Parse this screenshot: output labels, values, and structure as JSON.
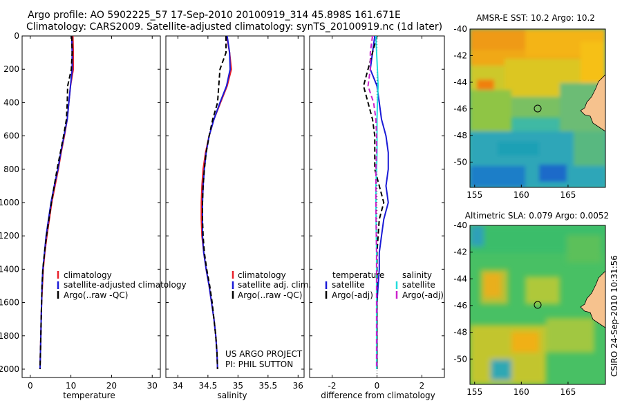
{
  "header": {
    "line1": "Argo profile: AO 5902225_57 17-Sep-2010 20100919_314 45.898S 161.671E",
    "line2": "Climatology: CARS2009. Satellite-adjusted climatology: synTS_20100919.nc (1d later)"
  },
  "credit": {
    "project": "US ARGO PROJECT",
    "pi": "PI: PHIL SUTTON",
    "stamp": "CSIRO 24-Sep-2010 10:31:56"
  },
  "colors": {
    "climatology": "#e8202a",
    "satellite": "#1a1ad6",
    "argo": "#000000",
    "satellite_sal_diff": "#22dddd",
    "argo_sal_diff": "#cc22cc",
    "land": "#f6c28e"
  },
  "chart_data": [
    {
      "type": "line",
      "name": "temperature-profile",
      "xlabel": "temperature",
      "ylabel": "",
      "xlim": [
        -2,
        32
      ],
      "ylim": [
        2050,
        0
      ],
      "xticks": [
        0,
        10,
        20,
        30
      ],
      "yticks": [
        0,
        200,
        400,
        600,
        800,
        1000,
        1200,
        1400,
        1600,
        1800,
        2000
      ],
      "depth": [
        0,
        100,
        200,
        300,
        400,
        500,
        600,
        700,
        800,
        900,
        1000,
        1100,
        1200,
        1300,
        1400,
        1500,
        1600,
        1700,
        1800,
        1900,
        2000
      ],
      "series": [
        {
          "name": "climatology",
          "style": "solid",
          "values": [
            10.5,
            10.6,
            10.6,
            9.9,
            9.5,
            9.1,
            8.4,
            7.6,
            6.9,
            6.1,
            5.3,
            4.7,
            4.1,
            3.6,
            3.2,
            3.0,
            2.8,
            2.7,
            2.6,
            2.5,
            2.4
          ]
        },
        {
          "name": "satellite-adjusted climatology",
          "style": "solid",
          "values": [
            10.2,
            10.3,
            10.3,
            9.9,
            9.5,
            9.1,
            8.3,
            7.5,
            6.8,
            5.9,
            5.1,
            4.5,
            3.9,
            3.5,
            3.1,
            2.9,
            2.8,
            2.7,
            2.6,
            2.5,
            2.4
          ]
        },
        {
          "name": "Argo(..raw -QC)",
          "style": "dashed",
          "values": [
            10.2,
            10.3,
            10.1,
            9.2,
            9.1,
            8.9,
            8.2,
            7.4,
            6.6,
            5.9,
            5.2,
            4.6,
            4.0,
            3.5,
            3.1,
            2.9,
            2.8,
            2.7,
            2.6,
            2.5,
            2.4
          ]
        }
      ],
      "legend": {
        "labels": [
          "climatology",
          "satellite-adjusted climatology",
          "Argo(..raw -QC)"
        ],
        "placement": "lower-right"
      }
    },
    {
      "type": "line",
      "name": "salinity-profile",
      "xlabel": "salinity",
      "ylabel": "",
      "xlim": [
        33.8,
        36.1
      ],
      "ylim": [
        2050,
        0
      ],
      "xticks": [
        34,
        34.5,
        35,
        35.5,
        36
      ],
      "depth": [
        0,
        100,
        200,
        300,
        400,
        500,
        600,
        700,
        800,
        900,
        1000,
        1100,
        1200,
        1300,
        1400,
        1500,
        1600,
        1700,
        1800,
        1900,
        2000
      ],
      "series": [
        {
          "name": "climatology",
          "style": "solid",
          "values": [
            34.81,
            34.86,
            34.89,
            34.82,
            34.71,
            34.6,
            34.52,
            34.46,
            34.42,
            34.4,
            34.39,
            34.39,
            34.4,
            34.43,
            34.47,
            34.52,
            34.56,
            34.6,
            34.63,
            34.65,
            34.66
          ]
        },
        {
          "name": "satellite adj. clim.",
          "style": "solid",
          "values": [
            34.82,
            34.86,
            34.87,
            34.81,
            34.7,
            34.6,
            34.52,
            34.47,
            34.44,
            34.42,
            34.41,
            34.41,
            34.41,
            34.43,
            34.47,
            34.52,
            34.56,
            34.6,
            34.63,
            34.65,
            34.66
          ]
        },
        {
          "name": "Argo(..raw -QC)",
          "style": "dashed",
          "values": [
            34.8,
            34.8,
            34.7,
            34.68,
            34.66,
            34.58,
            34.52,
            34.47,
            34.44,
            34.42,
            34.41,
            34.41,
            34.42,
            34.44,
            34.48,
            34.53,
            34.57,
            34.6,
            34.63,
            34.65,
            34.66
          ]
        }
      ],
      "legend": {
        "labels": [
          "climatology",
          "satellite adj. clim.",
          "Argo(..raw -QC)"
        ],
        "placement": "lower-right"
      }
    },
    {
      "type": "line",
      "name": "difference-profile",
      "xlabel": "difference from climatology",
      "ylabel": "",
      "xlim": [
        -3,
        3
      ],
      "ylim": [
        2050,
        0
      ],
      "xticks": [
        -2,
        0,
        2
      ],
      "depth": [
        0,
        100,
        200,
        300,
        400,
        500,
        600,
        700,
        800,
        900,
        1000,
        1100,
        1200,
        1300,
        1400,
        1500,
        1600,
        1700,
        1800,
        1900,
        2000
      ],
      "series": [
        {
          "name": "temperature satellite",
          "style": "solid",
          "values": [
            -0.1,
            -0.2,
            -0.3,
            0.0,
            0.1,
            0.2,
            0.4,
            0.5,
            0.5,
            0.4,
            0.5,
            0.3,
            0.2,
            0.1,
            0.1,
            0.05,
            0.0,
            0.0,
            0.0,
            0.0,
            0.0
          ]
        },
        {
          "name": "temperature Argo(-adj)",
          "style": "dashed",
          "values": [
            0.0,
            -0.2,
            -0.4,
            -0.6,
            -0.4,
            -0.2,
            -0.1,
            -0.1,
            -0.1,
            0.1,
            0.3,
            0.1,
            0.05,
            0.0,
            0.0,
            0.0,
            0.0,
            0.0,
            0.0,
            0.0,
            0.0
          ]
        },
        {
          "name": "salinity satellite",
          "style": "solid",
          "values": [
            -0.05,
            -0.02,
            0.02,
            0.05,
            0.02,
            0.0,
            0.0,
            0.0,
            -0.02,
            -0.05,
            -0.05,
            -0.04,
            -0.03,
            -0.02,
            -0.02,
            -0.02,
            -0.02,
            -0.02,
            -0.02,
            -0.02,
            -0.02
          ]
        },
        {
          "name": "salinity Argo(-adj)",
          "style": "dashed",
          "values": [
            -0.2,
            -0.3,
            -0.3,
            -0.4,
            -0.15,
            -0.05,
            -0.02,
            -0.02,
            -0.05,
            -0.05,
            -0.05,
            -0.04,
            -0.03,
            -0.02,
            -0.02,
            -0.02,
            -0.02,
            -0.02,
            -0.02,
            -0.02,
            -0.02
          ]
        }
      ],
      "legend": {
        "headers": [
          "temperature",
          "salinity"
        ],
        "temperature_labels": [
          "satellite",
          "Argo(-adj)"
        ],
        "salinity_labels": [
          "satellite",
          "Argo(-adj)"
        ],
        "placement": "lower-center"
      }
    },
    {
      "type": "heatmap",
      "name": "sst-map",
      "title": "AMSR-E SST: 10.2 Argo: 10.2",
      "xlim": [
        154.5,
        169
      ],
      "ylim": [
        -51.9,
        -40
      ],
      "xticks": [
        155,
        160,
        165
      ],
      "yticks": [
        -40,
        -42,
        -44,
        -46,
        -48,
        -50
      ],
      "float_position": [
        161.671,
        -45.898
      ]
    },
    {
      "type": "heatmap",
      "name": "sla-map",
      "title": "Altimetric SLA: 0.079 Argo: 0.0052",
      "xlim": [
        154.5,
        169
      ],
      "ylim": [
        -51.9,
        -40
      ],
      "xticks": [
        155,
        160,
        165
      ],
      "yticks": [
        -40,
        -42,
        -44,
        -46,
        -48,
        -50
      ],
      "float_position": [
        161.671,
        -45.898
      ]
    }
  ]
}
